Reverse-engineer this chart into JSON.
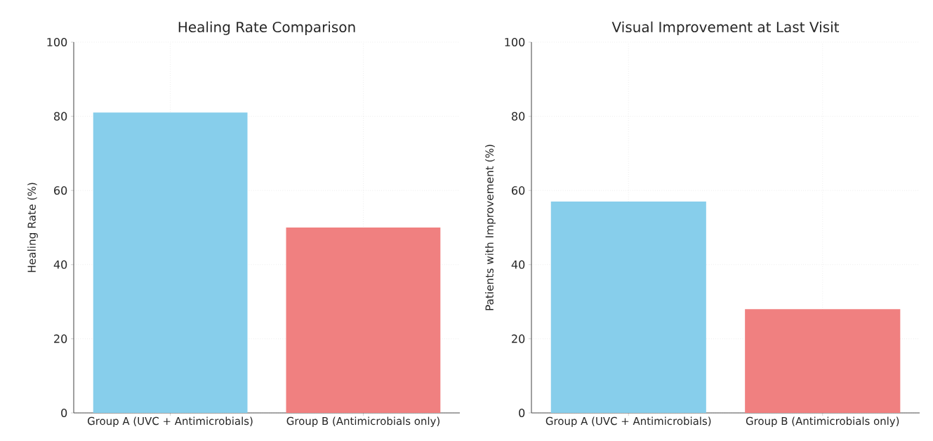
{
  "chart_data": [
    {
      "type": "bar",
      "title": "Healing Rate Comparison",
      "ylabel": "Healing Rate (%)",
      "categories": [
        "Group A (UVC + Antimicrobials)",
        "Group B (Antimicrobials only)"
      ],
      "values": [
        81,
        50
      ],
      "colors": [
        "#87ceeb",
        "#f08080"
      ],
      "ylim": [
        0,
        100
      ],
      "yticks": [
        0,
        20,
        40,
        60,
        80,
        100
      ],
      "grid": true
    },
    {
      "type": "bar",
      "title": "Visual Improvement at Last Visit",
      "ylabel": "Patients with Improvement (%)",
      "categories": [
        "Group A (UVC + Antimicrobials)",
        "Group B (Antimicrobials only)"
      ],
      "values": [
        57,
        28
      ],
      "colors": [
        "#87ceeb",
        "#f08080"
      ],
      "ylim": [
        0,
        100
      ],
      "yticks": [
        0,
        20,
        40,
        60,
        80,
        100
      ],
      "grid": true
    }
  ]
}
